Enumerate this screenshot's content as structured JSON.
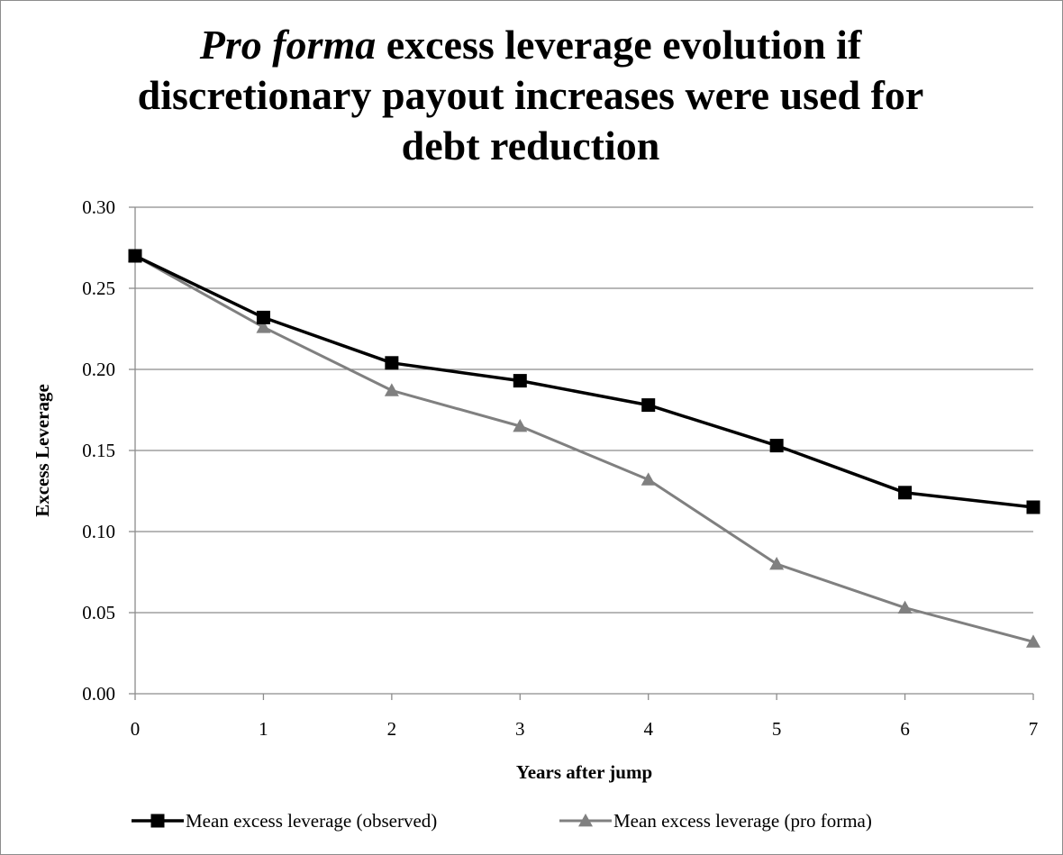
{
  "chart_data": {
    "type": "line",
    "title_em": "Pro forma",
    "title_rest_line1": " excess leverage evolution if",
    "title_line2": "discretionary payout increases were used for",
    "title_line3": "debt reduction",
    "xlabel": "Years after jump",
    "ylabel": "Excess Leverage",
    "x": [
      0,
      1,
      2,
      3,
      4,
      5,
      6,
      7
    ],
    "x_tick_labels": [
      "0",
      "1",
      "2",
      "3",
      "4",
      "5",
      "6",
      "7"
    ],
    "y_tick_labels": [
      "0.00",
      "0.05",
      "0.10",
      "0.15",
      "0.20",
      "0.25",
      "0.30"
    ],
    "ylim": [
      0,
      0.3
    ],
    "grid": true,
    "legend_position": "bottom",
    "series": [
      {
        "name": "Mean excess leverage (observed)",
        "color": "#000000",
        "marker": "square",
        "values": [
          0.27,
          0.232,
          0.204,
          0.193,
          0.178,
          0.153,
          0.124,
          0.115
        ]
      },
      {
        "name": "Mean excess leverage (pro forma)",
        "color": "#808080",
        "marker": "triangle",
        "values": [
          0.27,
          0.226,
          0.187,
          0.165,
          0.132,
          0.08,
          0.053,
          0.032
        ]
      }
    ]
  }
}
